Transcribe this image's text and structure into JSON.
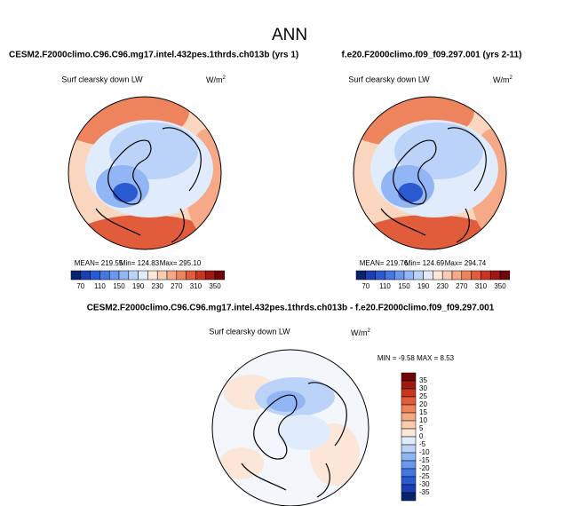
{
  "title": "ANN",
  "panels": [
    {
      "case": "CESM2.F2000climo.C96.C96.mg17.intel.432pes.1thrds.ch013b (yrs 1)",
      "variable": "Surf clearsky down LW",
      "units": "W/m",
      "units_power": "2",
      "stats": [
        "MEAN= 219.55",
        "Min= 124.83",
        "Max= 295.10"
      ],
      "colorbar": {
        "labels": [
          70,
          110,
          150,
          190,
          230,
          270,
          310,
          350
        ]
      }
    },
    {
      "case": "f.e20.F2000climo.f09_f09.297.001 (yrs 2-11)",
      "variable": "Surf clearsky down LW",
      "units": "W/m",
      "units_power": "2",
      "stats": [
        "MEAN= 219.76",
        "Min= 124.69",
        "Max= 294.74"
      ],
      "colorbar": {
        "labels": [
          70,
          110,
          150,
          190,
          230,
          270,
          310,
          350
        ]
      }
    }
  ],
  "difference": {
    "case": "CESM2.F2000climo.C96.C96.mg17.intel.432pes.1thrds.ch013b - f.e20.F2000climo.f09_f09.297.001",
    "variable": "Surf clearsky down LW",
    "units": "W/m",
    "units_power": "2",
    "stats": "MIN =  -9.58 MAX =   8.53",
    "colorbar": {
      "labels": [
        35,
        30,
        25,
        20,
        15,
        10,
        5,
        0,
        -5,
        -10,
        -15,
        -20,
        -25,
        -30,
        -35
      ]
    }
  }
}
